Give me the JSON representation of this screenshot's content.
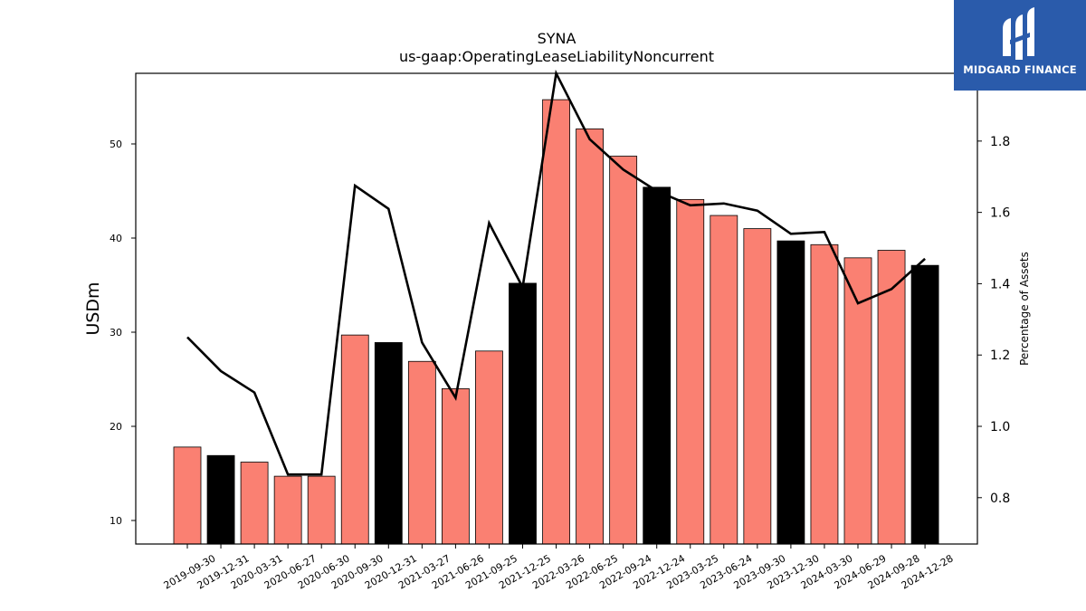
{
  "chart_data": {
    "type": "bar",
    "title": "SYNA",
    "subtitle": "us-gaap:OperatingLeaseLiabilityNoncurrent",
    "ylabel": "USDm",
    "y2label": "Percentage of Assets",
    "ylim": [
      7.5,
      57.5
    ],
    "y2lim": [
      0.67,
      1.99
    ],
    "yticks": [
      10,
      20,
      30,
      40,
      50
    ],
    "y2ticks": [
      0.8,
      1.0,
      1.2,
      1.4,
      1.6,
      1.8
    ],
    "categories": [
      "2019-09-30",
      "2019-12-31",
      "2020-03-31",
      "2020-06-27",
      "2020-06-30",
      "2020-09-30",
      "2020-12-31",
      "2021-03-27",
      "2021-06-26",
      "2021-09-25",
      "2021-12-25",
      "2022-03-26",
      "2022-06-25",
      "2022-09-24",
      "2022-12-24",
      "2023-03-25",
      "2023-06-24",
      "2023-09-30",
      "2023-12-30",
      "2024-03-30",
      "2024-06-29",
      "2024-09-28",
      "2024-12-28"
    ],
    "series": [
      {
        "type": "bar",
        "axis": "left",
        "values": [
          17.8,
          16.9,
          16.2,
          14.7,
          14.7,
          29.7,
          28.9,
          26.9,
          24.0,
          28.0,
          35.2,
          54.7,
          51.6,
          48.7,
          45.4,
          44.1,
          42.4,
          41.0,
          39.7,
          39.3,
          37.9,
          38.7,
          37.1
        ],
        "colors": [
          "#fa8072",
          "#000000",
          "#fa8072",
          "#fa8072",
          "#fa8072",
          "#fa8072",
          "#000000",
          "#fa8072",
          "#fa8072",
          "#fa8072",
          "#000000",
          "#fa8072",
          "#fa8072",
          "#fa8072",
          "#000000",
          "#fa8072",
          "#fa8072",
          "#fa8072",
          "#000000",
          "#fa8072",
          "#fa8072",
          "#fa8072",
          "#000000"
        ]
      },
      {
        "type": "line",
        "axis": "right",
        "color": "#000000",
        "values": [
          1.25,
          1.155,
          1.095,
          0.865,
          0.865,
          1.675,
          1.61,
          1.235,
          1.08,
          1.57,
          1.39,
          1.99,
          1.805,
          1.72,
          1.66,
          1.62,
          1.625,
          1.605,
          1.54,
          1.545,
          1.345,
          1.385,
          1.47
        ]
      }
    ],
    "grid": false,
    "legend": "none"
  },
  "logo": {
    "text": "MIDGARD FINANCE"
  },
  "colors": {
    "bar_primary": "#fa8072",
    "bar_highlight": "#000000",
    "logo_bg": "#2a5bab"
  }
}
